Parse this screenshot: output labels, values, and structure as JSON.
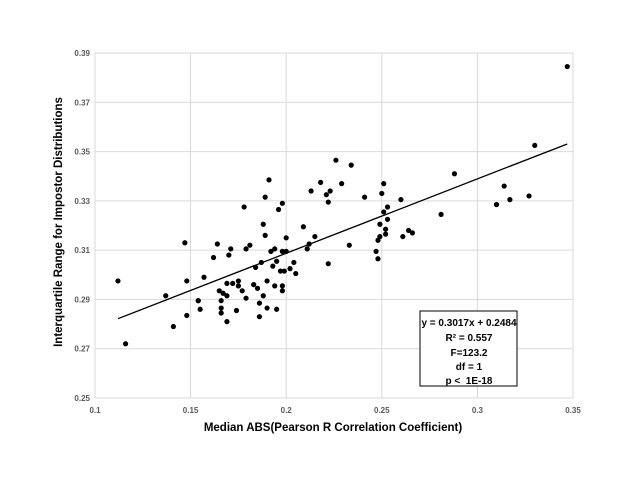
{
  "chart_data": {
    "type": "scatter",
    "title": "",
    "xlabel": "Median ABS(Pearson R Correlation Coefficient)",
    "ylabel": "Interquartile Range for Impostor Distributions",
    "xlim": [
      0.1,
      0.35
    ],
    "ylim": [
      0.25,
      0.39
    ],
    "x_ticks": [
      0.1,
      0.15,
      0.2,
      0.25,
      0.3,
      0.35
    ],
    "x_tick_labels": [
      "0.1",
      "0.15",
      "0.2",
      "0.25",
      "0.3",
      "0.35"
    ],
    "y_ticks": [
      0.25,
      0.27,
      0.29,
      0.31,
      0.33,
      0.35,
      0.37,
      0.39
    ],
    "y_tick_labels": [
      "0.25",
      "0.27",
      "0.29",
      "0.31",
      "0.33",
      "0.35",
      "0.37",
      "0.39"
    ],
    "grid": true,
    "marker_color": "#000000",
    "series": [
      {
        "points": [
          [
            0.112,
            0.2975
          ],
          [
            0.116,
            0.272
          ],
          [
            0.137,
            0.2915
          ],
          [
            0.141,
            0.279
          ],
          [
            0.147,
            0.313
          ],
          [
            0.148,
            0.2975
          ],
          [
            0.148,
            0.2835
          ],
          [
            0.154,
            0.2895
          ],
          [
            0.154,
            0.2895
          ],
          [
            0.155,
            0.286
          ],
          [
            0.157,
            0.299
          ],
          [
            0.162,
            0.307
          ],
          [
            0.164,
            0.3125
          ],
          [
            0.165,
            0.2935
          ],
          [
            0.166,
            0.2895
          ],
          [
            0.166,
            0.2865
          ],
          [
            0.166,
            0.2845
          ],
          [
            0.167,
            0.2925
          ],
          [
            0.169,
            0.2965
          ],
          [
            0.169,
            0.2915
          ],
          [
            0.169,
            0.281
          ],
          [
            0.17,
            0.308
          ],
          [
            0.171,
            0.3105
          ],
          [
            0.172,
            0.2965
          ],
          [
            0.174,
            0.2855
          ],
          [
            0.175,
            0.2975
          ],
          [
            0.175,
            0.2955
          ],
          [
            0.177,
            0.2935
          ],
          [
            0.178,
            0.3275
          ],
          [
            0.179,
            0.3105
          ],
          [
            0.179,
            0.2905
          ],
          [
            0.181,
            0.312
          ],
          [
            0.183,
            0.296
          ],
          [
            0.184,
            0.303
          ],
          [
            0.185,
            0.2945
          ],
          [
            0.186,
            0.2885
          ],
          [
            0.186,
            0.283
          ],
          [
            0.187,
            0.305
          ],
          [
            0.188,
            0.3205
          ],
          [
            0.188,
            0.2915
          ],
          [
            0.189,
            0.3315
          ],
          [
            0.189,
            0.316
          ],
          [
            0.19,
            0.2975
          ],
          [
            0.19,
            0.2865
          ],
          [
            0.191,
            0.3385
          ],
          [
            0.192,
            0.3095
          ],
          [
            0.193,
            0.3035
          ],
          [
            0.194,
            0.3105
          ],
          [
            0.194,
            0.2955
          ],
          [
            0.195,
            0.3055
          ],
          [
            0.195,
            0.286
          ],
          [
            0.196,
            0.3265
          ],
          [
            0.197,
            0.3015
          ],
          [
            0.198,
            0.329
          ],
          [
            0.198,
            0.3095
          ],
          [
            0.198,
            0.2955
          ],
          [
            0.198,
            0.2935
          ],
          [
            0.199,
            0.3015
          ],
          [
            0.2,
            0.315
          ],
          [
            0.2,
            0.3095
          ],
          [
            0.202,
            0.3025
          ],
          [
            0.204,
            0.305
          ],
          [
            0.205,
            0.3005
          ],
          [
            0.209,
            0.3195
          ],
          [
            0.211,
            0.3105
          ],
          [
            0.212,
            0.3125
          ],
          [
            0.213,
            0.334
          ],
          [
            0.215,
            0.3155
          ],
          [
            0.218,
            0.3375
          ],
          [
            0.221,
            0.3325
          ],
          [
            0.222,
            0.3295
          ],
          [
            0.222,
            0.3045
          ],
          [
            0.223,
            0.334
          ],
          [
            0.226,
            0.3465
          ],
          [
            0.229,
            0.337
          ],
          [
            0.233,
            0.312
          ],
          [
            0.234,
            0.3445
          ],
          [
            0.241,
            0.3315
          ],
          [
            0.247,
            0.3095
          ],
          [
            0.248,
            0.3065
          ],
          [
            0.248,
            0.314
          ],
          [
            0.249,
            0.3155
          ],
          [
            0.249,
            0.3205
          ],
          [
            0.25,
            0.333
          ],
          [
            0.251,
            0.337
          ],
          [
            0.251,
            0.3255
          ],
          [
            0.252,
            0.3165
          ],
          [
            0.252,
            0.3185
          ],
          [
            0.253,
            0.3275
          ],
          [
            0.253,
            0.3225
          ],
          [
            0.26,
            0.3305
          ],
          [
            0.261,
            0.3155
          ],
          [
            0.264,
            0.318
          ],
          [
            0.266,
            0.317
          ],
          [
            0.281,
            0.3245
          ],
          [
            0.288,
            0.341
          ],
          [
            0.31,
            0.3285
          ],
          [
            0.31,
            0.3285
          ],
          [
            0.314,
            0.336
          ],
          [
            0.317,
            0.3305
          ],
          [
            0.327,
            0.332
          ],
          [
            0.33,
            0.3525
          ],
          [
            0.347,
            0.3845
          ]
        ]
      }
    ],
    "trendline": {
      "slope": 0.3017,
      "intercept": 0.2484,
      "x_range": [
        0.112,
        0.347
      ]
    },
    "annotations": [
      "y = 0.3017x + 0.2484",
      "R² = 0.557",
      "F=123.2",
      "df = 1",
      "p <  1E-18"
    ]
  }
}
